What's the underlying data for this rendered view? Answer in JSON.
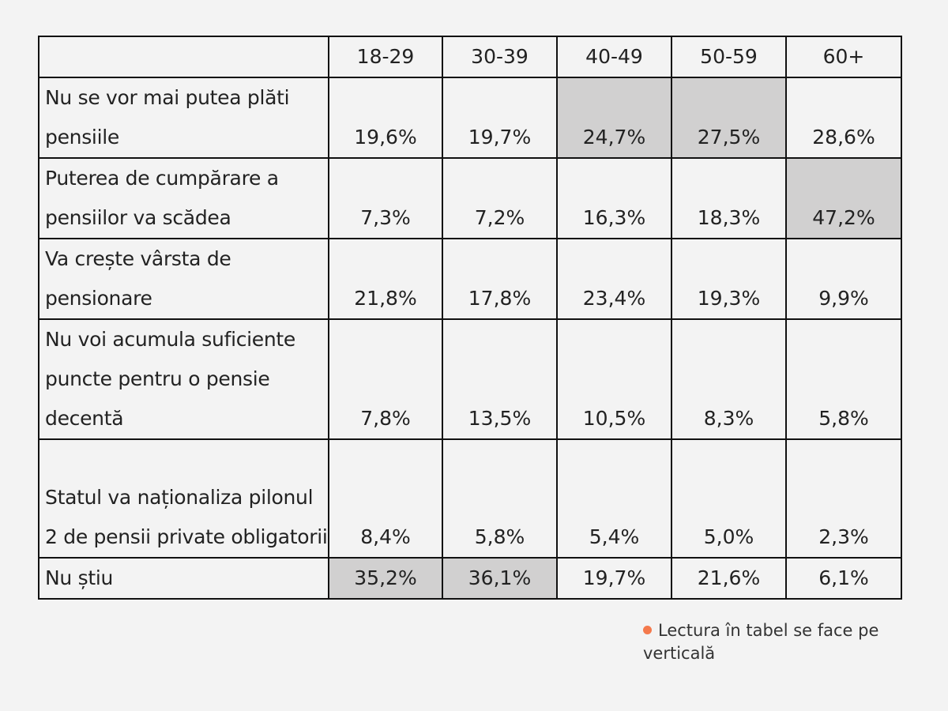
{
  "table": {
    "headers": [
      "",
      "18-29",
      "30-39",
      "40-49",
      "50-59",
      "60+"
    ],
    "rows": [
      {
        "label": "Nu se vor mai putea plăti pensiile",
        "values": [
          "19,6%",
          "19,7%",
          "24,7%",
          "27,5%",
          "28,6%"
        ],
        "highlight": [
          false,
          false,
          true,
          true,
          false
        ],
        "lines": 2
      },
      {
        "label": "Puterea de cumpărare a pensiilor va scădea",
        "values": [
          "7,3%",
          "7,2%",
          "16,3%",
          "18,3%",
          "47,2%"
        ],
        "highlight": [
          false,
          false,
          false,
          false,
          true
        ],
        "lines": 2
      },
      {
        "label": "Va crește vârsta de pensionare",
        "values": [
          "21,8%",
          "17,8%",
          "23,4%",
          "19,3%",
          "9,9%"
        ],
        "highlight": [
          false,
          false,
          false,
          false,
          false
        ],
        "lines": 2
      },
      {
        "label": "Nu voi acumula suficiente puncte pentru o pensie decentă",
        "values": [
          "7,8%",
          "13,5%",
          "10,5%",
          "8,3%",
          "5,8%"
        ],
        "highlight": [
          false,
          false,
          false,
          false,
          false
        ],
        "lines": 3
      },
      {
        "label": "Statul va naționaliza pilonul 2 de pensii private obligatorii",
        "values": [
          "8,4%",
          "5,8%",
          "5,4%",
          "5,0%",
          "2,3%"
        ],
        "highlight": [
          false,
          false,
          false,
          false,
          false
        ],
        "lines": 3
      },
      {
        "label": "Nu știu",
        "values": [
          "35,2%",
          "36,1%",
          "19,7%",
          "21,6%",
          "6,1%"
        ],
        "highlight": [
          true,
          true,
          false,
          false,
          false
        ],
        "lines": 1
      }
    ]
  },
  "note": {
    "text": "Lectura în tabel se face pe verticală",
    "bullet_color": "#f4794c"
  },
  "colors": {
    "highlight": "#d1d0d0",
    "background": "#f3f3f3"
  }
}
